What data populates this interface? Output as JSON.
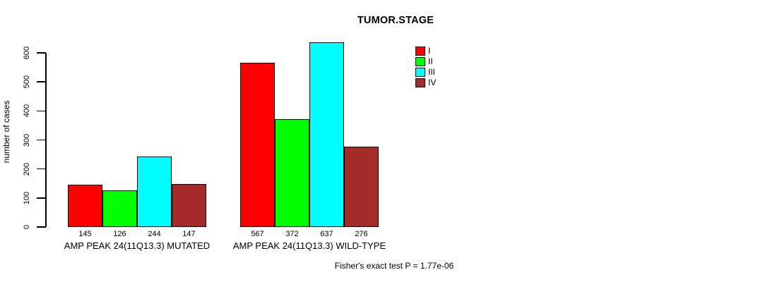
{
  "chart_data": {
    "type": "bar",
    "title": "TUMOR.STAGE",
    "ylabel": "number of cases",
    "xlabel": "",
    "ylim": [
      0,
      600
    ],
    "yticks": [
      0,
      100,
      200,
      300,
      400,
      500,
      600
    ],
    "grid": false,
    "legend_position": "top-right",
    "series": [
      {
        "name": "I",
        "color": "#FF0000"
      },
      {
        "name": "II",
        "color": "#00FF00"
      },
      {
        "name": "III",
        "color": "#00FFFF"
      },
      {
        "name": "IV",
        "color": "#A52A2A"
      }
    ],
    "groups": [
      {
        "label": "AMP PEAK 24(11Q13.3) MUTATED",
        "values": [
          145,
          126,
          244,
          147
        ]
      },
      {
        "label": "AMP PEAK 24(11Q13.3) WILD-TYPE",
        "values": [
          567,
          372,
          637,
          276
        ]
      }
    ],
    "annotation": "Fisher's exact test P = 1.77e-06"
  }
}
